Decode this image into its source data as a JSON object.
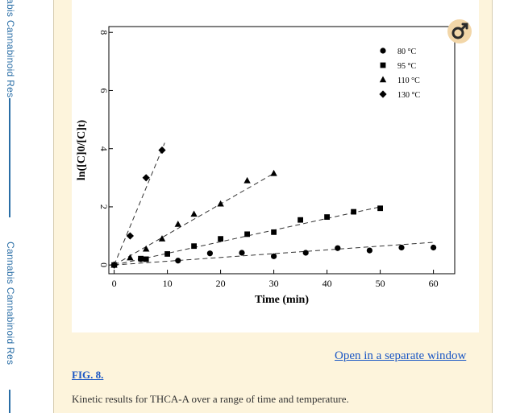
{
  "sidebar": {
    "labels": [
      "abis Cannabinoid Res",
      "Cannabis Cannabinoid Res"
    ],
    "line_color": "#2a6ea6"
  },
  "figure": {
    "open_link": "Open in a separate window",
    "fig_label": "FIG. 8.",
    "caption": "Kinetic results for THCA-A over a range of time and temperature.",
    "badge_icon": "leaf-badge-icon"
  },
  "chart_data": {
    "type": "scatter",
    "title": "",
    "xlabel": "Time (min)",
    "ylabel": "ln([C]0/[C]t)",
    "xlim": [
      -1,
      64
    ],
    "ylim": [
      -0.3,
      8.2
    ],
    "xticks": [
      0,
      10,
      20,
      30,
      40,
      50,
      60
    ],
    "yticks": [
      0,
      2,
      4,
      6,
      8
    ],
    "legend_position": "top-right",
    "series": [
      {
        "name": "80 °C",
        "marker": "circle",
        "x": [
          0,
          5,
          12,
          18,
          24,
          30,
          36,
          42,
          48,
          54,
          60
        ],
        "y": [
          0,
          0.2,
          0.15,
          0.4,
          0.42,
          0.3,
          0.42,
          0.58,
          0.5,
          0.6,
          0.6
        ],
        "fit": [
          [
            0,
            0
          ],
          [
            60,
            0.78
          ]
        ]
      },
      {
        "name": "95 °C",
        "marker": "square",
        "x": [
          0,
          5,
          6,
          10,
          15,
          20,
          25,
          30,
          35,
          40,
          45,
          50
        ],
        "y": [
          0,
          0.22,
          0.2,
          0.38,
          0.65,
          0.9,
          1.06,
          1.13,
          1.55,
          1.65,
          1.83,
          1.95
        ],
        "fit": [
          [
            0,
            0
          ],
          [
            50,
            2.0
          ]
        ]
      },
      {
        "name": "110 °C",
        "marker": "triangle",
        "x": [
          0,
          3,
          6,
          9,
          12,
          15,
          20,
          25,
          30
        ],
        "y": [
          0,
          0.25,
          0.55,
          0.9,
          1.4,
          1.75,
          2.1,
          2.9,
          3.15
        ],
        "fit": [
          [
            0,
            0
          ],
          [
            30,
            3.15
          ]
        ]
      },
      {
        "name": "130 °C",
        "marker": "diamond",
        "x": [
          0,
          3,
          6,
          9
        ],
        "y": [
          0,
          1.0,
          3.0,
          3.95
        ],
        "fit": [
          [
            0,
            0
          ],
          [
            9.5,
            4.2
          ]
        ]
      }
    ]
  }
}
